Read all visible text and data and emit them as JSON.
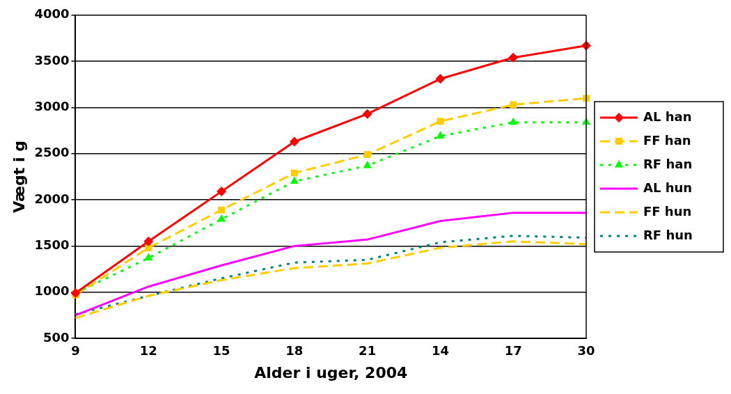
{
  "chart_data": {
    "type": "line",
    "xlabel": "Alder i uger, 2004",
    "ylabel": "Vægt i g",
    "categories": [
      "9",
      "12",
      "15",
      "18",
      "21",
      "14",
      "17",
      "30"
    ],
    "ylim": [
      500,
      4000
    ],
    "yticks": [
      500,
      1000,
      1500,
      2000,
      2500,
      3000,
      3500,
      4000
    ],
    "grid": "y",
    "legend": "right",
    "series": [
      {
        "name": "AL han",
        "color": "#ff0000",
        "marker": "diamond",
        "line_style": "solid",
        "values": [
          990,
          1550,
          2090,
          2630,
          2930,
          3310,
          3540,
          3670
        ]
      },
      {
        "name": "FF han",
        "color": "#ffcc00",
        "marker": "square",
        "line_style": "dashed",
        "values": [
          970,
          1480,
          1890,
          2290,
          2490,
          2850,
          3030,
          3100
        ]
      },
      {
        "name": "RF han",
        "color": "#00ff00",
        "marker": "triangle",
        "line_style": "dotted",
        "values": [
          990,
          1370,
          1790,
          2200,
          2370,
          2690,
          2840,
          2840
        ]
      },
      {
        "name": "AL hun",
        "color": "#ff00ff",
        "marker": "none",
        "line_style": "solid",
        "values": [
          750,
          1060,
          1290,
          1500,
          1570,
          1770,
          1860,
          1860
        ]
      },
      {
        "name": "FF hun",
        "color": "#ffcc00",
        "marker": "none",
        "line_style": "dashed",
        "values": [
          720,
          960,
          1130,
          1260,
          1310,
          1480,
          1550,
          1520
        ]
      },
      {
        "name": "RF hun",
        "color": "#008080",
        "marker": "none",
        "line_style": "dotted",
        "values": [
          760,
          960,
          1150,
          1320,
          1350,
          1540,
          1610,
          1590
        ]
      }
    ]
  }
}
